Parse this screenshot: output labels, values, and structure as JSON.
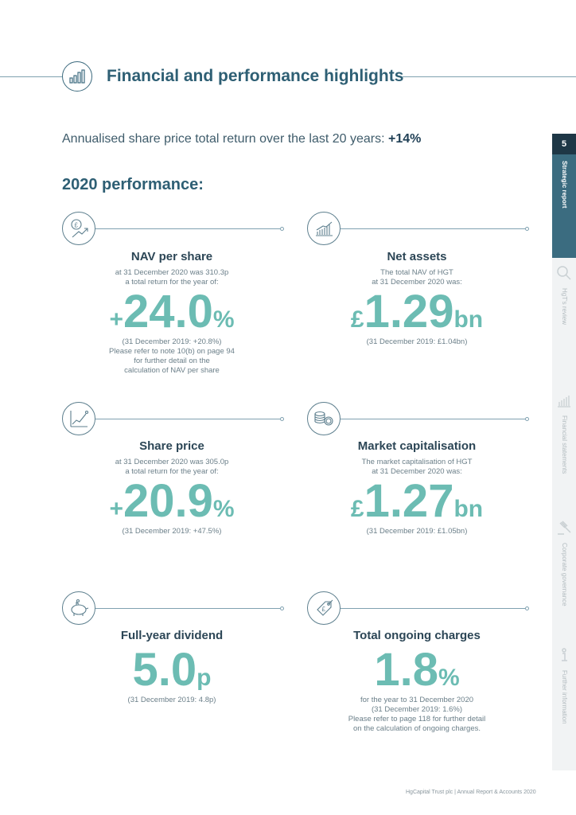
{
  "header": {
    "title": "Financial and performance highlights",
    "icon": "bar-chart-icon"
  },
  "intro": {
    "text": "Annualised share price total return over the last 20 years: ",
    "value": "+14%"
  },
  "performance_title": "2020 performance:",
  "cards": {
    "nav": {
      "icon": "pound-growth-icon",
      "title": "NAV per share",
      "sub1": "at 31 December 2020 was 310.3p",
      "sub2": "a total return for the year of:",
      "prefix": "+",
      "value": "24.0",
      "suffix": "%",
      "note1": "(31 December 2019: +20.8%)",
      "note2": "Please refer to note 10(b) on page 94",
      "note3": "for further detail on the",
      "note4": "calculation of NAV per share"
    },
    "net_assets": {
      "icon": "bar-growth-icon",
      "title": "Net assets",
      "sub1": "The total NAV of HGT",
      "sub2": "at 31 December 2020 was:",
      "prefix": "£",
      "value": "1.29",
      "suffix": "bn",
      "note1": "(31 December 2019: £1.04bn)"
    },
    "share_price": {
      "icon": "line-chart-icon",
      "title": "Share price",
      "sub1": "at 31 December 2020 was 305.0p",
      "sub2": "a total return for the year of:",
      "prefix": "+",
      "value": "20.9",
      "suffix": "%",
      "note1": "(31 December 2019: +47.5%)"
    },
    "market_cap": {
      "icon": "coins-icon",
      "title": "Market capitalisation",
      "sub1": "The market capitalisation of HGT",
      "sub2": "at 31 December 2020 was:",
      "prefix": "£",
      "value": "1.27",
      "suffix": "bn",
      "note1": "(31 December 2019: £1.05bn)"
    },
    "dividend": {
      "icon": "piggy-bank-icon",
      "title": "Full-year dividend",
      "value": "5.0",
      "suffix": "p",
      "note1": "(31 December 2019: 4.8p)"
    },
    "charges": {
      "icon": "price-tag-icon",
      "title": "Total ongoing charges",
      "value": "1.8",
      "suffix": "%",
      "note1": "for the year to 31 December 2020",
      "note2": "(31 December 2019: 1.6%)",
      "note3": "Please refer to page 118 for further detail",
      "note4": "on the calculation of ongoing charges."
    }
  },
  "tabs": {
    "page_number": "5",
    "items": [
      {
        "label": "Strategic report",
        "active": true
      },
      {
        "label": "HgT's review",
        "active": false,
        "icon": "magnifier-icon"
      },
      {
        "label": "Financial statements",
        "active": false,
        "icon": "bar-chart-icon"
      },
      {
        "label": "Corporate governance",
        "active": false,
        "icon": "gavel-icon"
      },
      {
        "label": "Further information",
        "active": false,
        "icon": "info-icon"
      }
    ]
  },
  "footer": "HgCapital Trust plc  |  Annual Report & Accounts 2020",
  "colors": {
    "accent": "#6cbcb3",
    "heading": "#2e5f74",
    "tab_active": "#3b6c80",
    "tab_number": "#1e3746"
  }
}
